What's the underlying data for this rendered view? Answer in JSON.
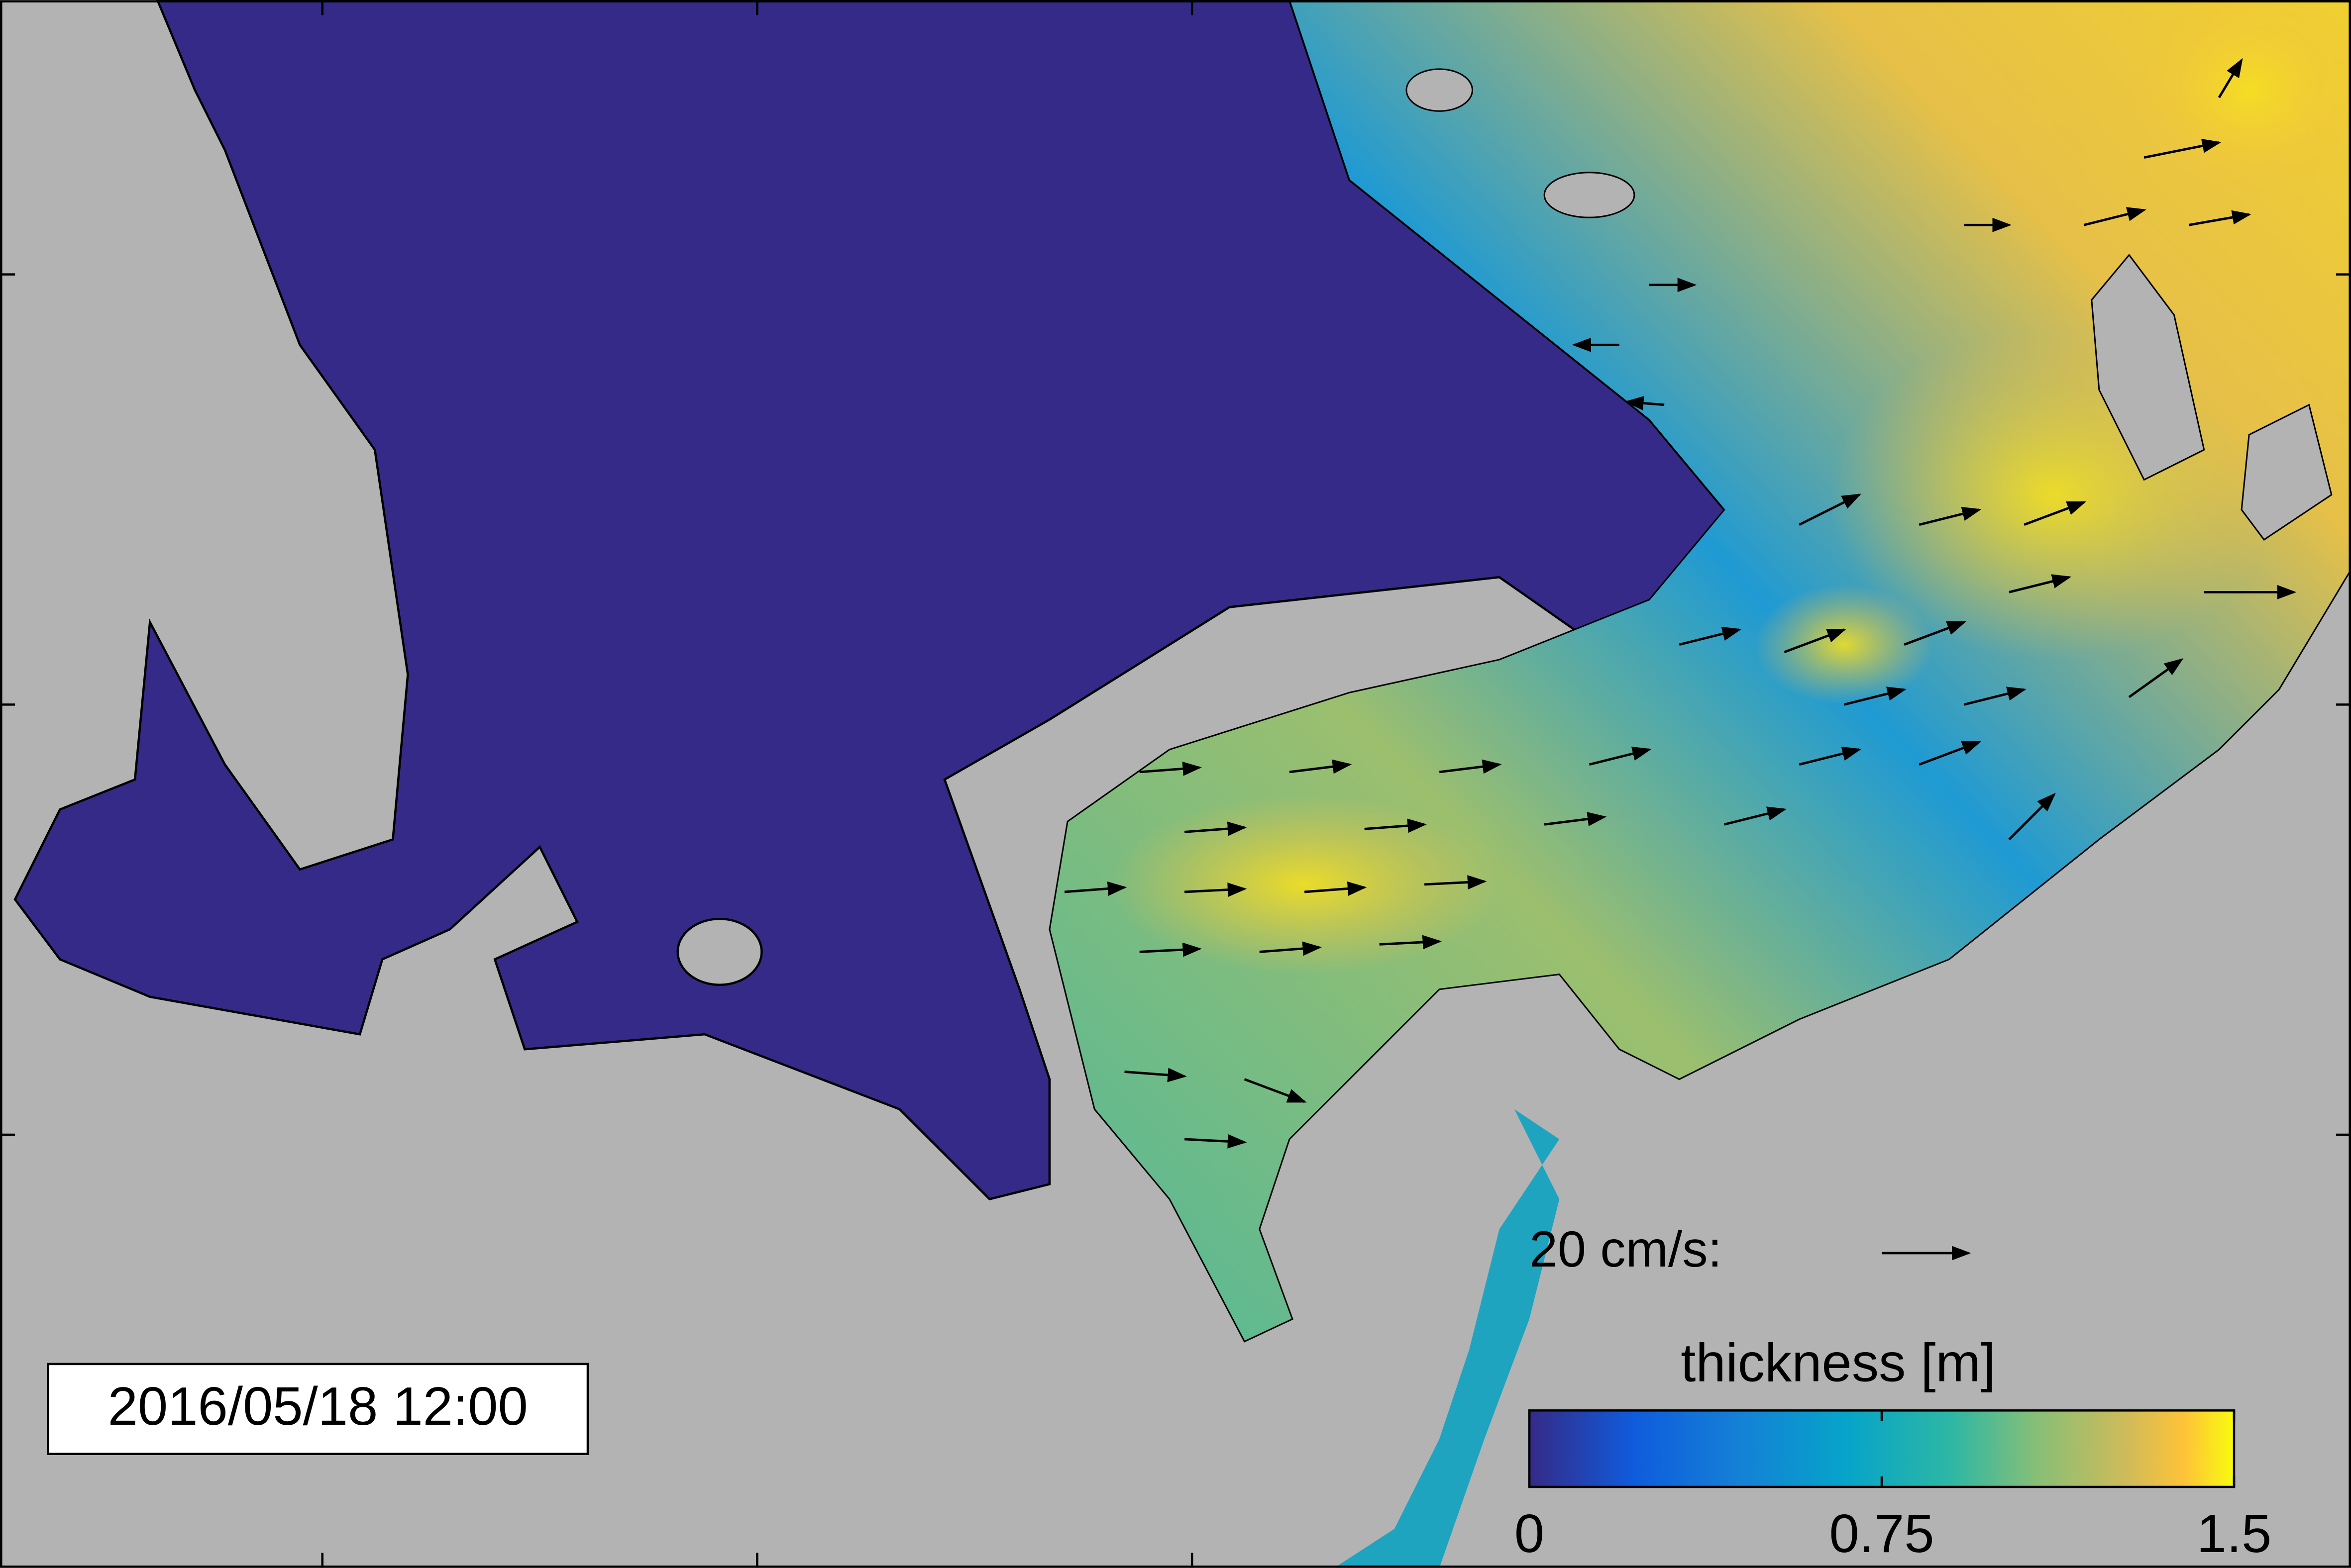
{
  "timestamp": "2016/05/18 12:00",
  "scale_arrow": {
    "label": "20 cm/s:"
  },
  "colorbar": {
    "label": "thickness [m]",
    "lim": [
      0,
      1.5
    ],
    "ticks": [
      0,
      0.75,
      1.5
    ]
  }
}
